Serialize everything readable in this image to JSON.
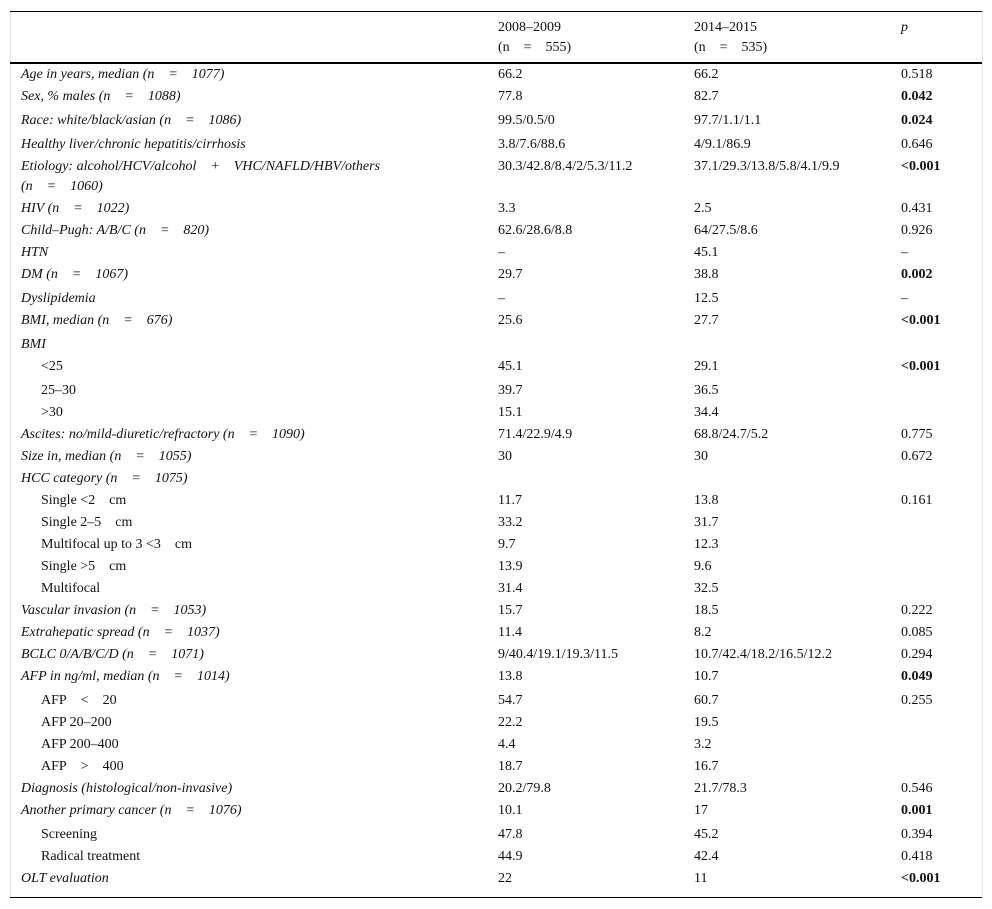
{
  "header": {
    "col1": {
      "line1": "2008–2009",
      "line2": "(n = 555)"
    },
    "col2": {
      "line1": "2014–2015",
      "line2": "(n = 535)"
    },
    "p": "p"
  },
  "rows": [
    {
      "label": "Age in years, median (n = 1077)",
      "v1": "66.2",
      "v2": "66.2",
      "p": "0.518",
      "bold": false,
      "indent": false
    },
    {
      "label": "Sex, % males (n = 1088)",
      "v1": "77.8",
      "v2": "82.7",
      "p": "0.042",
      "bold": true,
      "indent": false
    },
    {
      "label": "Race: white/black/asian (n = 1086)",
      "v1": "99.5/0.5/0",
      "v2": "97.7/1.1/1.1",
      "p": "0.024",
      "bold": true,
      "indent": false
    },
    {
      "label": "Healthy liver/chronic hepatitis/cirrhosis",
      "v1": "3.8/7.6/88.6",
      "v2": "4/9.1/86.9",
      "p": "0.646",
      "bold": false,
      "indent": false
    },
    {
      "label": "Etiology: alcohol/HCV/alcohol + VHC/NAFLD/HBV/others",
      "label2": "(n = 1060)",
      "v1": "30.3/42.8/8.4/2/5.3/11.2",
      "v2": "37.1/29.3/13.8/5.8/4.1/9.9",
      "p": "<0.001",
      "bold": true,
      "indent": false
    },
    {
      "label": "HIV (n = 1022)",
      "v1": "3.3",
      "v2": "2.5",
      "p": "0.431",
      "bold": false,
      "indent": false
    },
    {
      "label": "Child–Pugh: A/B/C (n = 820)",
      "v1": "62.6/28.6/8.8",
      "v2": "64/27.5/8.6",
      "p": "0.926",
      "bold": false,
      "indent": false
    },
    {
      "label": "HTN",
      "v1": "–",
      "v2": "45.1",
      "p": "–",
      "bold": false,
      "indent": false
    },
    {
      "label": "DM (n = 1067)",
      "v1": "29.7",
      "v2": "38.8",
      "p": "0.002",
      "bold": true,
      "indent": false
    },
    {
      "label": "Dyslipidemia",
      "v1": "–",
      "v2": "12.5",
      "p": "–",
      "bold": false,
      "indent": false
    },
    {
      "label": "BMI, median (n = 676)",
      "v1": "25.6",
      "v2": "27.7",
      "p": "<0.001",
      "bold": true,
      "indent": false
    },
    {
      "label": "BMI",
      "v1": "",
      "v2": "",
      "p": "",
      "bold": false,
      "indent": false
    },
    {
      "label": "<25",
      "v1": "45.1",
      "v2": "29.1",
      "p": "<0.001",
      "bold": true,
      "indent": true
    },
    {
      "label": "25–30",
      "v1": "39.7",
      "v2": "36.5",
      "p": "",
      "bold": false,
      "indent": true
    },
    {
      "label": ">30",
      "v1": "15.1",
      "v2": "34.4",
      "p": "",
      "bold": false,
      "indent": true
    },
    {
      "label": "Ascites: no/mild-diuretic/refractory (n = 1090)",
      "v1": "71.4/22.9/4.9",
      "v2": "68.8/24.7/5.2",
      "p": "0.775",
      "bold": false,
      "indent": false
    },
    {
      "label": "Size in, median (n = 1055)",
      "v1": "30",
      "v2": "30",
      "p": "0.672",
      "bold": false,
      "indent": false
    },
    {
      "label": "HCC category (n = 1075)",
      "v1": "",
      "v2": "",
      "p": "",
      "bold": false,
      "indent": false
    },
    {
      "label": "Single <2 cm",
      "v1": "11.7",
      "v2": "13.8",
      "p": "0.161",
      "bold": false,
      "indent": true
    },
    {
      "label": "Single 2–5 cm",
      "v1": "33.2",
      "v2": "31.7",
      "p": "",
      "bold": false,
      "indent": true
    },
    {
      "label": "Multifocal up to 3 <3 cm",
      "v1": "9.7",
      "v2": "12.3",
      "p": "",
      "bold": false,
      "indent": true
    },
    {
      "label": "Single >5 cm",
      "v1": "13.9",
      "v2": "9.6",
      "p": "",
      "bold": false,
      "indent": true
    },
    {
      "label": "Multifocal",
      "v1": "31.4",
      "v2": "32.5",
      "p": "",
      "bold": false,
      "indent": true
    },
    {
      "label": "Vascular invasion (n = 1053)",
      "v1": "15.7",
      "v2": "18.5",
      "p": "0.222",
      "bold": false,
      "indent": false
    },
    {
      "label": "Extrahepatic spread (n = 1037)",
      "v1": "11.4",
      "v2": "8.2",
      "p": "0.085",
      "bold": false,
      "indent": false
    },
    {
      "label": "BCLC 0/A/B/C/D (n = 1071)",
      "v1": "9/40.4/19.1/19.3/11.5",
      "v2": "10.7/42.4/18.2/16.5/12.2",
      "p": "0.294",
      "bold": false,
      "indent": false
    },
    {
      "label": "AFP in ng/ml, median (n = 1014)",
      "v1": "13.8",
      "v2": "10.7",
      "p": "0.049",
      "bold": true,
      "indent": false
    },
    {
      "label": "AFP < 20",
      "v1": "54.7",
      "v2": "60.7",
      "p": "0.255",
      "bold": false,
      "indent": true
    },
    {
      "label": "AFP 20–200",
      "v1": "22.2",
      "v2": "19.5",
      "p": "",
      "bold": false,
      "indent": true
    },
    {
      "label": "AFP 200–400",
      "v1": "4.4",
      "v2": "3.2",
      "p": "",
      "bold": false,
      "indent": true
    },
    {
      "label": "AFP > 400",
      "v1": "18.7",
      "v2": "16.7",
      "p": "",
      "bold": false,
      "indent": true
    },
    {
      "label": "Diagnosis (histological/non-invasive)",
      "v1": "20.2/79.8",
      "v2": "21.7/78.3",
      "p": "0.546",
      "bold": false,
      "indent": false
    },
    {
      "label": "Another primary cancer (n = 1076)",
      "v1": "10.1",
      "v2": "17",
      "p": "0.001",
      "bold": true,
      "indent": false
    },
    {
      "label": "Screening",
      "v1": "47.8",
      "v2": "45.2",
      "p": "0.394",
      "bold": false,
      "indent": true
    },
    {
      "label": "Radical treatment",
      "v1": "44.9",
      "v2": "42.4",
      "p": "0.418",
      "bold": false,
      "indent": true
    },
    {
      "label": "OLT evaluation",
      "v1": "22",
      "v2": "11",
      "p": "<0.001",
      "bold": true,
      "indent": false
    }
  ]
}
